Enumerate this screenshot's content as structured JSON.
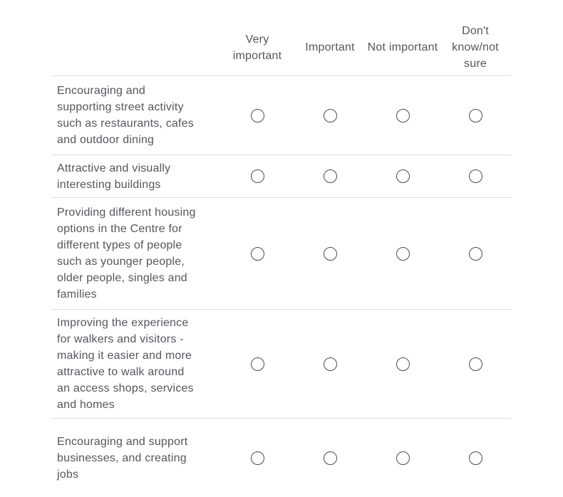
{
  "matrix": {
    "columns": [
      {
        "key": "very-important",
        "label": "Very important"
      },
      {
        "key": "important",
        "label": "Important"
      },
      {
        "key": "not-important",
        "label": "Not important"
      },
      {
        "key": "dont-know-not-sure",
        "label": "Don't know/not sure"
      }
    ],
    "rows": [
      {
        "label": "Encouraging and supporting street activity such as restaurants, cafes and outdoor dining"
      },
      {
        "label": "Attractive and visually interesting buildings"
      },
      {
        "label": "Providing different housing options in the Centre for different types of people such as younger people, older people, singles and families"
      },
      {
        "label": "Improving the experience for walkers and visitors - making it easier and more attractive to walk around an access shops, services and homes"
      },
      {
        "label": "Encouraging and support businesses, and creating jobs"
      }
    ],
    "radio_state": "unselected",
    "colors": {
      "text": "#55565c",
      "divider": "#dcdcdc",
      "radio_border": "#4b4b4d",
      "background": "#ffffff"
    }
  }
}
